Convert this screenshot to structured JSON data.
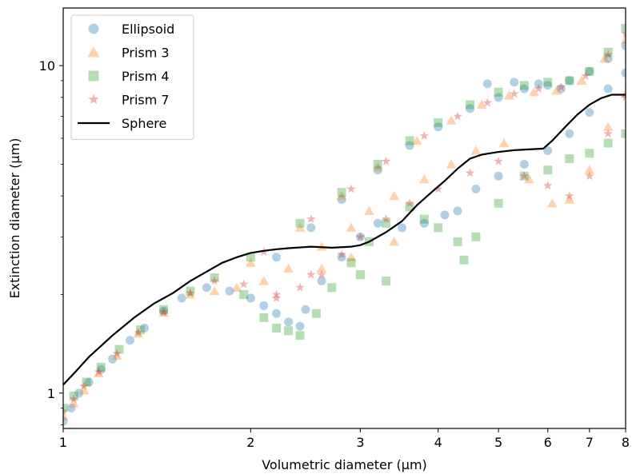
{
  "chart_data": {
    "type": "scatter",
    "xlabel": "Volumetric diameter (μm)",
    "ylabel": "Extinction diameter (μm)",
    "xscale": "log",
    "yscale": "log",
    "xlim": [
      1,
      8
    ],
    "ylim": [
      0.78,
      15
    ],
    "x_ticks": [
      {
        "value": 1,
        "label": "1"
      },
      {
        "value": 2,
        "label": "2"
      },
      {
        "value": 3,
        "label": "3"
      },
      {
        "value": 4,
        "label": "4"
      },
      {
        "value": 5,
        "label": "5"
      },
      {
        "value": 6,
        "label": "6"
      },
      {
        "value": 7,
        "label": "7"
      },
      {
        "value": 8,
        "label": "8"
      }
    ],
    "y_ticks": [
      {
        "value": 1,
        "label": "1"
      },
      {
        "value": 10,
        "label": "10"
      }
    ],
    "legend_position": "top-left",
    "grid": false,
    "series": [
      {
        "name": "Ellipsoid",
        "marker": "circle",
        "color": "#1f77b4",
        "points": [
          [
            1.0,
            0.82
          ],
          [
            1.03,
            0.9
          ],
          [
            1.06,
            1.0
          ],
          [
            1.1,
            1.08
          ],
          [
            1.15,
            1.18
          ],
          [
            1.2,
            1.27
          ],
          [
            1.28,
            1.45
          ],
          [
            1.35,
            1.58
          ],
          [
            1.45,
            1.78
          ],
          [
            1.55,
            1.95
          ],
          [
            1.7,
            2.1
          ],
          [
            1.85,
            2.05
          ],
          [
            2.0,
            1.95
          ],
          [
            2.1,
            1.85
          ],
          [
            2.2,
            1.75
          ],
          [
            2.3,
            1.65
          ],
          [
            2.4,
            1.6
          ],
          [
            2.45,
            1.8
          ],
          [
            2.6,
            2.2
          ],
          [
            2.8,
            2.6
          ],
          [
            3.0,
            3.0
          ],
          [
            3.2,
            3.3
          ],
          [
            3.5,
            3.2
          ],
          [
            3.8,
            3.3
          ],
          [
            4.1,
            3.5
          ],
          [
            4.3,
            3.6
          ],
          [
            4.6,
            4.2
          ],
          [
            5.0,
            4.6
          ],
          [
            5.5,
            5.0
          ],
          [
            6.0,
            5.5
          ],
          [
            6.5,
            6.2
          ],
          [
            7.0,
            7.2
          ],
          [
            7.5,
            8.5
          ],
          [
            8.0,
            9.5
          ],
          [
            2.2,
            2.6
          ],
          [
            2.5,
            3.2
          ],
          [
            2.8,
            3.9
          ],
          [
            3.2,
            4.8
          ],
          [
            3.6,
            5.7
          ],
          [
            4.0,
            6.5
          ],
          [
            4.5,
            7.4
          ],
          [
            5.0,
            8.0
          ],
          [
            5.5,
            8.5
          ],
          [
            6.0,
            8.7
          ],
          [
            6.5,
            9.0
          ],
          [
            7.0,
            9.6
          ],
          [
            7.5,
            10.5
          ],
          [
            8.0,
            11.5
          ],
          [
            4.8,
            8.8
          ],
          [
            5.3,
            8.9
          ],
          [
            5.8,
            8.8
          ],
          [
            6.3,
            8.5
          ]
        ]
      },
      {
        "name": "Prism 3",
        "marker": "triangle",
        "color": "#ff7f0e",
        "points": [
          [
            1.0,
            0.85
          ],
          [
            1.04,
            0.93
          ],
          [
            1.08,
            1.02
          ],
          [
            1.14,
            1.15
          ],
          [
            1.22,
            1.3
          ],
          [
            1.32,
            1.52
          ],
          [
            1.45,
            1.76
          ],
          [
            1.6,
            2.0
          ],
          [
            1.75,
            2.05
          ],
          [
            1.9,
            2.1
          ],
          [
            2.1,
            2.2
          ],
          [
            2.3,
            2.4
          ],
          [
            2.6,
            2.8
          ],
          [
            2.9,
            3.2
          ],
          [
            3.1,
            3.6
          ],
          [
            3.4,
            4.0
          ],
          [
            3.8,
            4.5
          ],
          [
            4.2,
            5.0
          ],
          [
            4.6,
            5.5
          ],
          [
            5.1,
            5.8
          ],
          [
            5.6,
            4.5
          ],
          [
            6.1,
            3.8
          ],
          [
            6.5,
            3.9
          ],
          [
            7.0,
            4.8
          ],
          [
            7.5,
            6.5
          ],
          [
            8.0,
            8.2
          ],
          [
            2.0,
            2.5
          ],
          [
            2.4,
            3.2
          ],
          [
            2.8,
            4.0
          ],
          [
            3.2,
            4.9
          ],
          [
            3.7,
            5.9
          ],
          [
            4.2,
            6.8
          ],
          [
            4.7,
            7.6
          ],
          [
            5.2,
            8.1
          ],
          [
            5.7,
            8.3
          ],
          [
            6.2,
            8.4
          ],
          [
            6.8,
            9.0
          ],
          [
            7.4,
            10.5
          ],
          [
            8.0,
            12.0
          ],
          [
            3.4,
            2.9
          ],
          [
            2.9,
            2.6
          ],
          [
            2.6,
            2.4
          ]
        ]
      },
      {
        "name": "Prism 4",
        "marker": "square",
        "color": "#2ca02c",
        "points": [
          [
            1.0,
            0.9
          ],
          [
            1.04,
            0.98
          ],
          [
            1.09,
            1.08
          ],
          [
            1.15,
            1.2
          ],
          [
            1.23,
            1.36
          ],
          [
            1.33,
            1.56
          ],
          [
            1.45,
            1.8
          ],
          [
            1.6,
            2.05
          ],
          [
            1.75,
            2.25
          ],
          [
            1.95,
            2.0
          ],
          [
            2.1,
            1.7
          ],
          [
            2.2,
            1.58
          ],
          [
            2.3,
            1.55
          ],
          [
            2.4,
            1.5
          ],
          [
            2.55,
            1.75
          ],
          [
            2.7,
            2.1
          ],
          [
            2.9,
            2.5
          ],
          [
            3.1,
            2.9
          ],
          [
            3.3,
            3.3
          ],
          [
            3.6,
            3.7
          ],
          [
            4.0,
            3.2
          ],
          [
            4.3,
            2.9
          ],
          [
            4.6,
            3.0
          ],
          [
            4.4,
            2.55
          ],
          [
            5.0,
            3.8
          ],
          [
            5.5,
            4.6
          ],
          [
            6.0,
            4.8
          ],
          [
            6.5,
            5.2
          ],
          [
            7.0,
            5.4
          ],
          [
            7.5,
            5.8
          ],
          [
            8.0,
            6.2
          ],
          [
            2.0,
            2.6
          ],
          [
            2.4,
            3.3
          ],
          [
            2.8,
            4.1
          ],
          [
            3.2,
            5.0
          ],
          [
            3.6,
            5.9
          ],
          [
            4.0,
            6.7
          ],
          [
            4.5,
            7.6
          ],
          [
            5.0,
            8.3
          ],
          [
            5.5,
            8.7
          ],
          [
            6.0,
            8.9
          ],
          [
            6.5,
            9.0
          ],
          [
            7.0,
            9.6
          ],
          [
            7.5,
            11.0
          ],
          [
            8.0,
            13.0
          ],
          [
            3.0,
            2.3
          ],
          [
            3.3,
            2.2
          ],
          [
            3.8,
            3.4
          ]
        ]
      },
      {
        "name": "Prism 7",
        "marker": "star",
        "color": "#d62728",
        "points": [
          [
            1.0,
            0.88
          ],
          [
            1.04,
            0.96
          ],
          [
            1.08,
            1.05
          ],
          [
            1.14,
            1.16
          ],
          [
            1.22,
            1.32
          ],
          [
            1.32,
            1.53
          ],
          [
            1.45,
            1.77
          ],
          [
            1.6,
            2.02
          ],
          [
            1.75,
            2.2
          ],
          [
            1.95,
            2.15
          ],
          [
            2.2,
            2.0
          ],
          [
            2.4,
            2.1
          ],
          [
            2.6,
            2.3
          ],
          [
            2.8,
            2.65
          ],
          [
            3.0,
            3.0
          ],
          [
            3.3,
            3.4
          ],
          [
            3.6,
            3.8
          ],
          [
            4.0,
            4.2
          ],
          [
            4.5,
            4.7
          ],
          [
            5.0,
            5.1
          ],
          [
            5.5,
            4.6
          ],
          [
            6.0,
            4.3
          ],
          [
            6.5,
            4.0
          ],
          [
            7.0,
            4.6
          ],
          [
            7.5,
            6.2
          ],
          [
            8.0,
            8.0
          ],
          [
            2.1,
            2.7
          ],
          [
            2.5,
            3.4
          ],
          [
            2.9,
            4.2
          ],
          [
            3.3,
            5.1
          ],
          [
            3.8,
            6.1
          ],
          [
            4.3,
            7.0
          ],
          [
            4.8,
            7.7
          ],
          [
            5.3,
            8.2
          ],
          [
            5.8,
            8.5
          ],
          [
            6.3,
            8.6
          ],
          [
            6.9,
            9.3
          ],
          [
            7.5,
            10.8
          ],
          [
            8.0,
            12.5
          ],
          [
            2.2,
            1.95
          ],
          [
            2.5,
            2.3
          ]
        ]
      },
      {
        "name": "Sphere",
        "marker": "line",
        "color": "#000000",
        "points": [
          [
            1.0,
            1.06
          ],
          [
            1.05,
            1.17
          ],
          [
            1.1,
            1.29
          ],
          [
            1.2,
            1.5
          ],
          [
            1.3,
            1.7
          ],
          [
            1.4,
            1.88
          ],
          [
            1.5,
            2.02
          ],
          [
            1.6,
            2.2
          ],
          [
            1.7,
            2.35
          ],
          [
            1.8,
            2.5
          ],
          [
            1.9,
            2.6
          ],
          [
            2.0,
            2.68
          ],
          [
            2.1,
            2.72
          ],
          [
            2.2,
            2.75
          ],
          [
            2.3,
            2.77
          ],
          [
            2.5,
            2.8
          ],
          [
            2.7,
            2.78
          ],
          [
            2.9,
            2.8
          ],
          [
            3.0,
            2.83
          ],
          [
            3.1,
            2.9
          ],
          [
            3.2,
            3.0
          ],
          [
            3.3,
            3.1
          ],
          [
            3.5,
            3.35
          ],
          [
            3.7,
            3.75
          ],
          [
            3.9,
            4.1
          ],
          [
            4.1,
            4.45
          ],
          [
            4.3,
            4.85
          ],
          [
            4.5,
            5.2
          ],
          [
            4.7,
            5.35
          ],
          [
            5.0,
            5.45
          ],
          [
            5.3,
            5.52
          ],
          [
            5.6,
            5.55
          ],
          [
            5.9,
            5.58
          ],
          [
            6.1,
            5.9
          ],
          [
            6.4,
            6.5
          ],
          [
            6.7,
            7.1
          ],
          [
            7.0,
            7.6
          ],
          [
            7.3,
            7.95
          ],
          [
            7.6,
            8.15
          ],
          [
            8.0,
            8.15
          ]
        ]
      }
    ]
  }
}
